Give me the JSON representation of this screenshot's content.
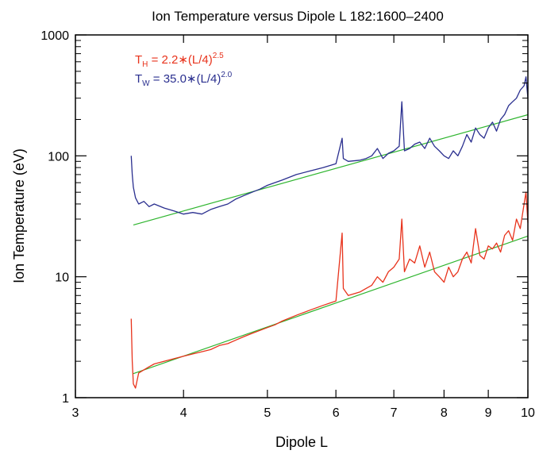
{
  "chart_data": {
    "type": "line",
    "title": "Ion Temperature versus Dipole L 182:1600–2400",
    "xlabel": "Dipole L",
    "ylabel": "Ion Temperature (eV)",
    "xscale": "log",
    "yscale": "log",
    "xlim": [
      3,
      10
    ],
    "ylim": [
      1,
      1000
    ],
    "x_ticks": [
      3,
      4,
      5,
      6,
      7,
      8,
      9,
      10
    ],
    "y_ticks": [
      1,
      10,
      100,
      1000
    ],
    "grid": false,
    "legend": {
      "placement": "top-left",
      "entries": [
        {
          "prefix": "T",
          "sub": "H",
          "text": " = 2.2∗(L/4)",
          "sup": "2.5",
          "color": "#e8331c"
        },
        {
          "prefix": "T",
          "sub": "W",
          "text": " = 35.0∗(L/4)",
          "sup": "2.0",
          "color": "#2a2f8f"
        }
      ]
    },
    "colors": {
      "water": "#2a2f8f",
      "hydrogen": "#e8331c",
      "fit": "#2fb52f"
    },
    "series": [
      {
        "key": "water",
        "x": [
          3.48,
          3.49,
          3.5,
          3.52,
          3.55,
          3.6,
          3.65,
          3.7,
          3.8,
          3.9,
          4.0,
          4.1,
          4.2,
          4.3,
          4.4,
          4.5,
          4.6,
          4.7,
          4.8,
          4.9,
          5.0,
          5.1,
          5.2,
          5.4,
          5.6,
          5.8,
          6.0,
          6.1,
          6.12,
          6.2,
          6.4,
          6.5,
          6.6,
          6.7,
          6.8,
          6.9,
          7.0,
          7.1,
          7.15,
          7.2,
          7.3,
          7.4,
          7.5,
          7.6,
          7.7,
          7.8,
          7.9,
          8.0,
          8.1,
          8.2,
          8.3,
          8.4,
          8.5,
          8.6,
          8.7,
          8.8,
          8.9,
          9.0,
          9.1,
          9.2,
          9.3,
          9.4,
          9.5,
          9.6,
          9.7,
          9.8,
          9.9,
          9.95,
          10.0
        ],
        "y": [
          100,
          70,
          55,
          45,
          40,
          42,
          38,
          40,
          37,
          35,
          33,
          34,
          33,
          36,
          38,
          40,
          44,
          47,
          50,
          53,
          57,
          60,
          63,
          70,
          75,
          80,
          86,
          140,
          95,
          90,
          92,
          95,
          100,
          115,
          95,
          105,
          110,
          120,
          280,
          110,
          115,
          125,
          130,
          115,
          140,
          120,
          110,
          100,
          95,
          110,
          100,
          120,
          150,
          130,
          170,
          150,
          140,
          170,
          190,
          160,
          200,
          220,
          260,
          280,
          300,
          350,
          380,
          450,
          300
        ]
      },
      {
        "key": "hydrogen",
        "x": [
          3.48,
          3.49,
          3.5,
          3.52,
          3.55,
          3.6,
          3.65,
          3.7,
          3.8,
          3.9,
          4.0,
          4.1,
          4.2,
          4.3,
          4.4,
          4.5,
          4.6,
          4.7,
          4.8,
          4.9,
          5.0,
          5.1,
          5.2,
          5.4,
          5.6,
          5.8,
          6.0,
          6.1,
          6.12,
          6.2,
          6.4,
          6.5,
          6.6,
          6.7,
          6.8,
          6.9,
          7.0,
          7.1,
          7.15,
          7.2,
          7.3,
          7.4,
          7.5,
          7.6,
          7.7,
          7.8,
          7.9,
          8.0,
          8.1,
          8.2,
          8.3,
          8.4,
          8.5,
          8.6,
          8.7,
          8.8,
          8.9,
          9.0,
          9.1,
          9.2,
          9.3,
          9.4,
          9.5,
          9.6,
          9.7,
          9.8,
          9.9,
          9.95,
          10.0
        ],
        "y": [
          4.5,
          2.0,
          1.3,
          1.2,
          1.6,
          1.7,
          1.8,
          1.9,
          2.0,
          2.1,
          2.2,
          2.3,
          2.4,
          2.5,
          2.7,
          2.8,
          3.0,
          3.2,
          3.4,
          3.6,
          3.8,
          4.0,
          4.3,
          4.8,
          5.3,
          5.8,
          6.3,
          23,
          8.0,
          7.0,
          7.5,
          8.0,
          8.5,
          10,
          9.0,
          11,
          12,
          14,
          30,
          11,
          14,
          13,
          18,
          12,
          16,
          11,
          10,
          9.0,
          12,
          10,
          11,
          14,
          16,
          13,
          25,
          15,
          14,
          18,
          17,
          19,
          16,
          22,
          24,
          20,
          30,
          25,
          40,
          50,
          28
        ]
      },
      {
        "key": "water_fit",
        "x": [
          3.5,
          10.0
        ],
        "y": [
          26.8,
          218.8
        ]
      },
      {
        "key": "hydrogen_fit",
        "x": [
          3.5,
          10.0
        ],
        "y": [
          1.58,
          21.7
        ]
      }
    ]
  }
}
